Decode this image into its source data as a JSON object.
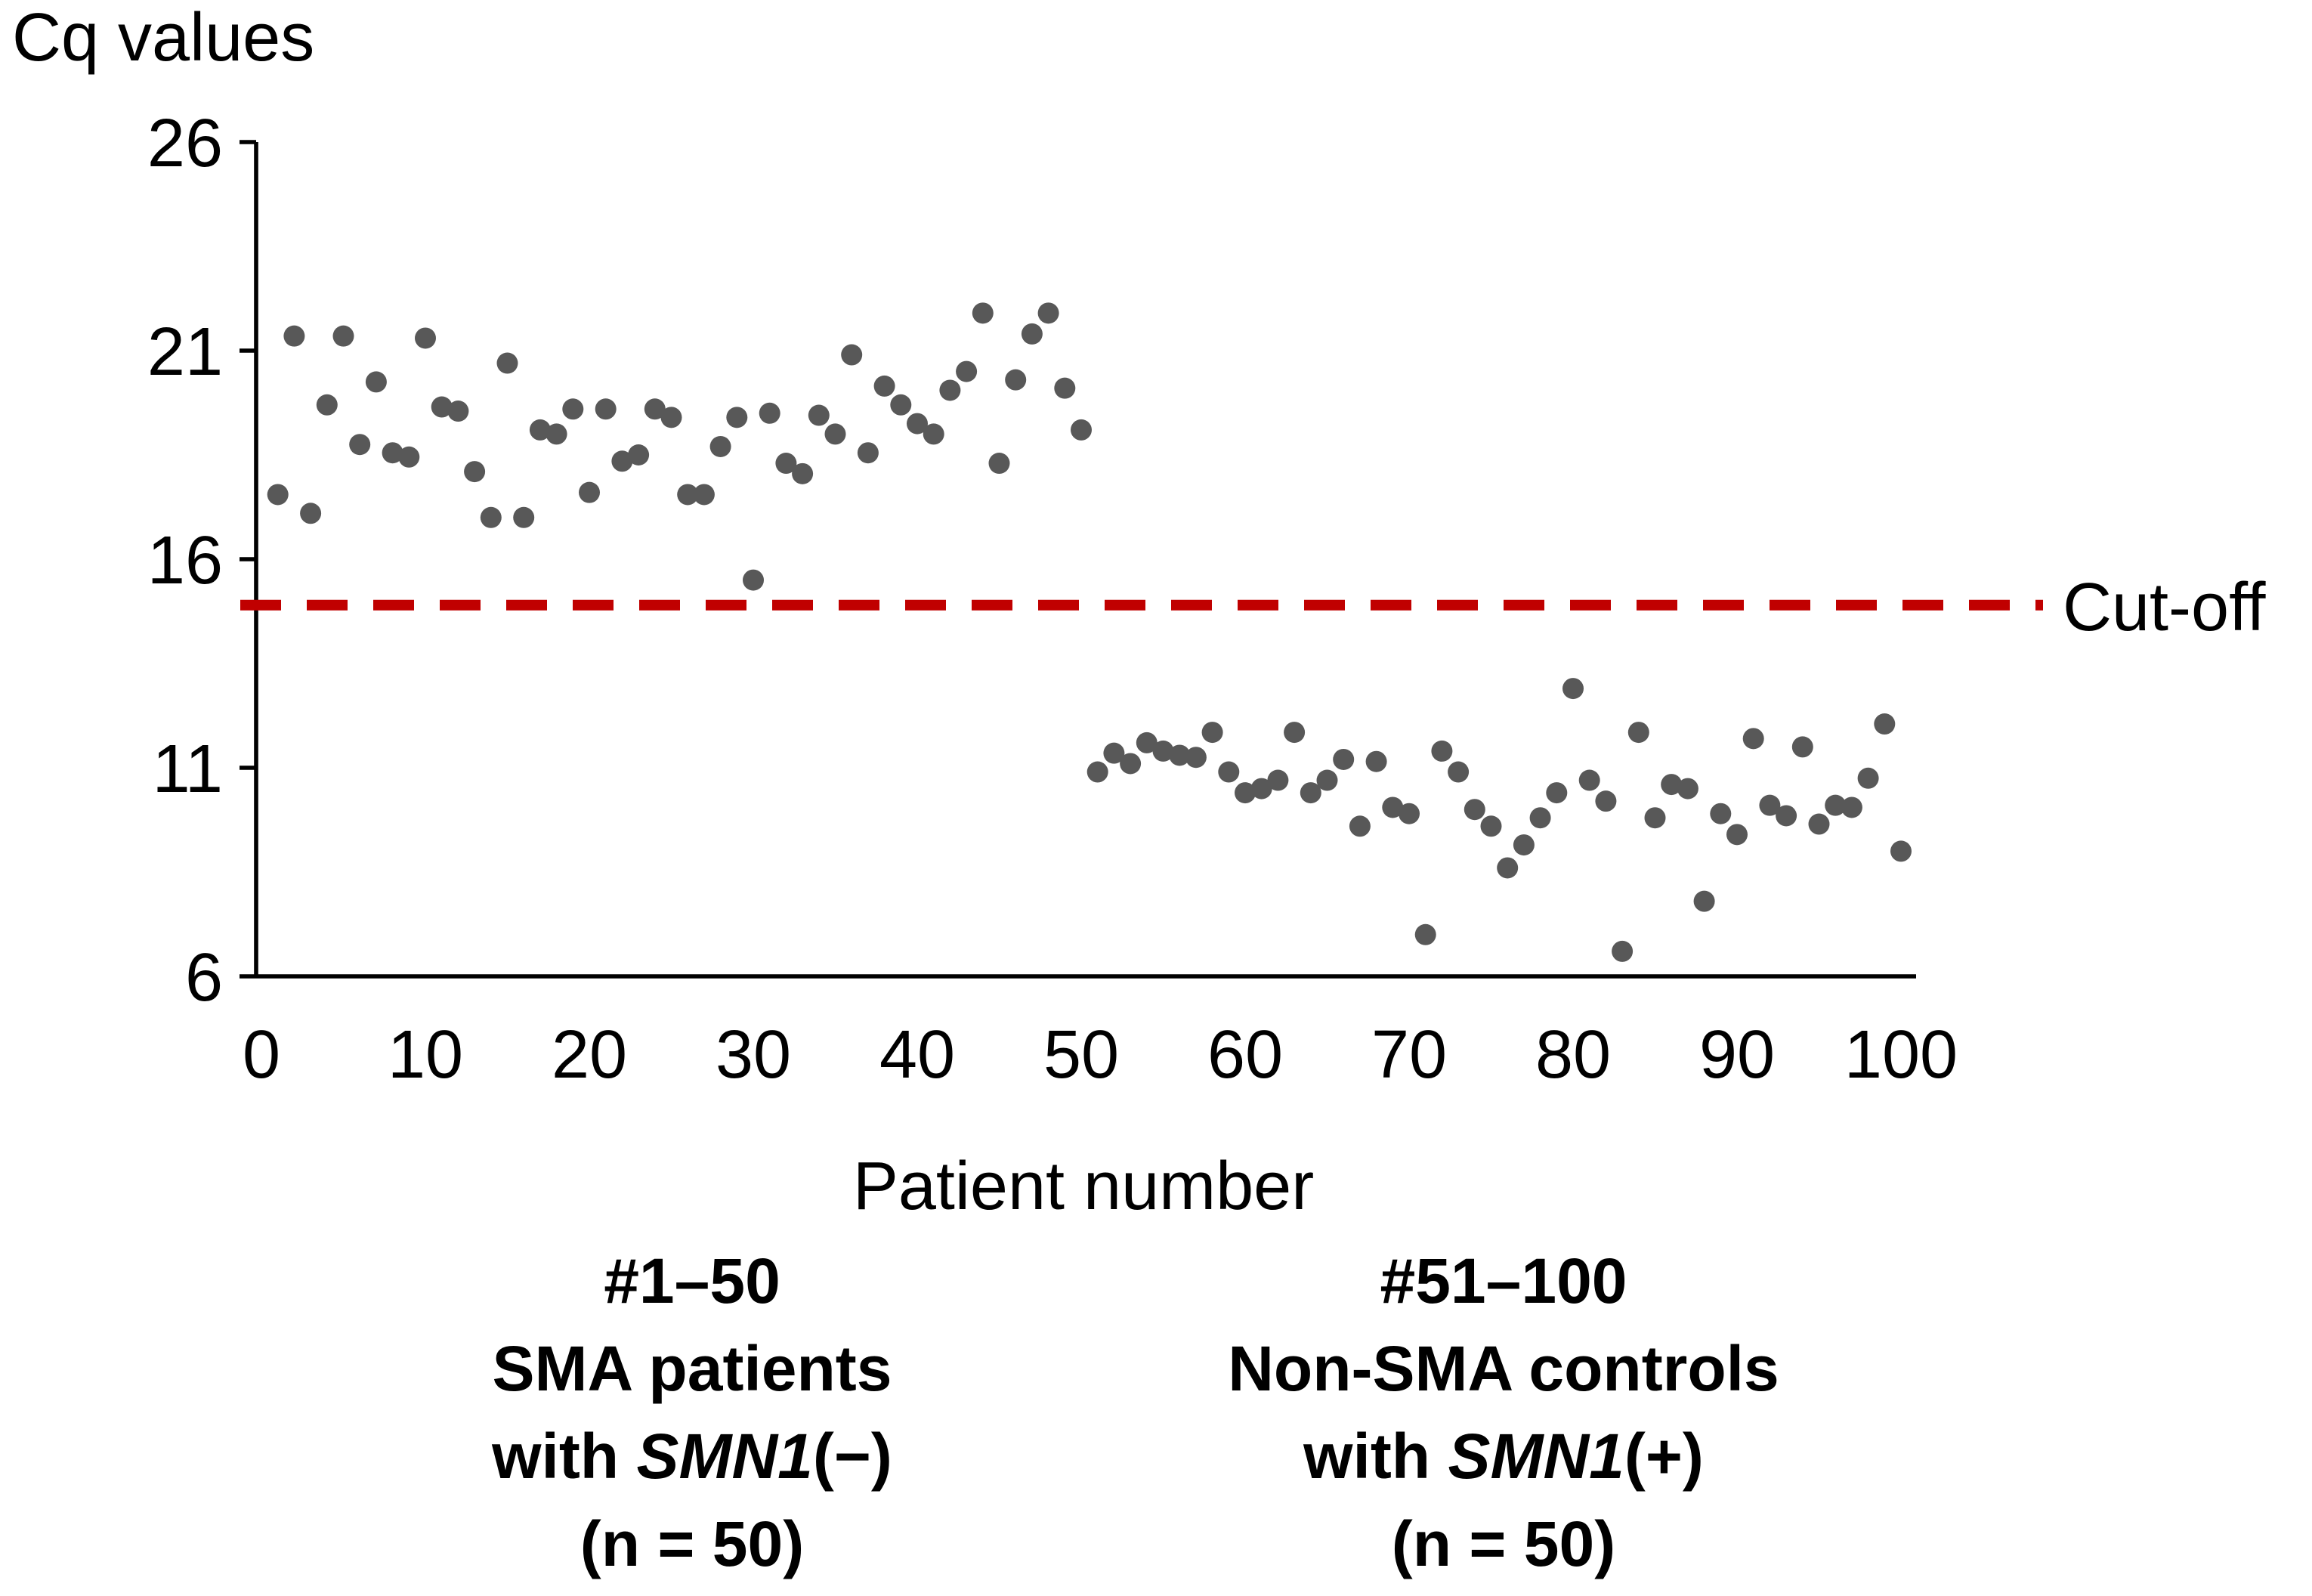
{
  "chart_data": {
    "type": "scatter",
    "title": "Cq values",
    "xlabel": "Patient number",
    "ylabel": "Cq values",
    "x_ticks": [
      0,
      10,
      20,
      30,
      40,
      50,
      60,
      70,
      80,
      90,
      100
    ],
    "y_ticks": [
      26,
      21,
      16,
      11,
      6
    ],
    "xlim": [
      0,
      104
    ],
    "ylim": [
      6,
      26
    ],
    "grid": false,
    "point_color": "#585858",
    "cutoff": {
      "value": 14.9,
      "label": "Cut-off",
      "color": "#C00000",
      "style": "dashed"
    },
    "series": [
      {
        "name": "SMA patients with SMN1(−), patients #1–50",
        "x_start": 1,
        "values": [
          17.55,
          21.35,
          17.1,
          19.7,
          21.35,
          18.75,
          20.25,
          18.55,
          18.45,
          21.3,
          19.65,
          19.55,
          18.1,
          17.0,
          20.7,
          17.0,
          19.1,
          19.0,
          19.6,
          17.6,
          19.6,
          18.35,
          18.5,
          19.6,
          19.4,
          17.55,
          17.55,
          18.7,
          19.4,
          15.5,
          19.5,
          18.3,
          18.05,
          19.45,
          19.0,
          20.9,
          18.55,
          20.15,
          19.7,
          19.25,
          19.0,
          20.05,
          20.5,
          21.9,
          18.3,
          20.3,
          21.4,
          21.9,
          20.1,
          19.1
        ]
      },
      {
        "name": "Non-SMA controls with SMN1(+), patients #51–100",
        "x_start": 51,
        "values": [
          10.9,
          11.35,
          11.1,
          11.6,
          11.4,
          11.3,
          11.25,
          11.85,
          10.9,
          10.4,
          10.5,
          10.7,
          11.85,
          10.4,
          10.7,
          11.2,
          9.6,
          11.15,
          10.05,
          9.9,
          7.0,
          11.4,
          10.9,
          10.0,
          9.6,
          8.6,
          9.15,
          9.8,
          10.4,
          12.9,
          10.7,
          10.2,
          6.6,
          11.85,
          9.8,
          10.6,
          10.5,
          7.8,
          9.9,
          9.4,
          11.7,
          10.1,
          9.85,
          11.5,
          9.65,
          10.1,
          10.05,
          10.75,
          12.05,
          9.0
        ]
      }
    ]
  },
  "captions": [
    {
      "line1": "#1–50",
      "line2": "SMA patients",
      "line3_pre": "with ",
      "gene": "SMN1",
      "line3_post": "(−)",
      "line4": "(n = 50)"
    },
    {
      "line1": "#51–100",
      "line2": "Non-SMA controls",
      "line3_pre": "with ",
      "gene": "SMN1",
      "line3_post": "(+)",
      "line4": "(n = 50)"
    }
  ],
  "colors": {
    "axis": "#000000",
    "text": "#000000",
    "dot": "#585858",
    "cutoff_line": "#C00000",
    "background": "#ffffff"
  }
}
